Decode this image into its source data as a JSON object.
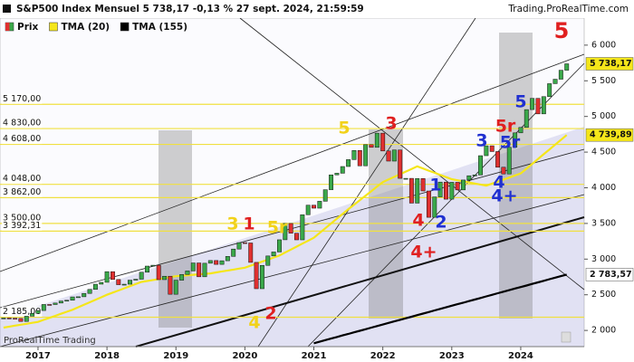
{
  "chart_data": {
    "type": "candlestick",
    "title": "S&P500 Index Mensuel 5 738,17 -0,13 % 27 sept. 2024, 21:59:59",
    "source": "Trading.ProRealTime.com",
    "watermark": "ProRealTime Trading",
    "categories": [
      null,
      null,
      null,
      null,
      null,
      null,
      "2017",
      null,
      null,
      null,
      null,
      null,
      null,
      null,
      null,
      null,
      null,
      null,
      "2018",
      null,
      null,
      null,
      null,
      null,
      null,
      null,
      null,
      null,
      null,
      null,
      "2019",
      null,
      null,
      null,
      null,
      null,
      null,
      null,
      null,
      null,
      null,
      null,
      "2020",
      null,
      null,
      null,
      null,
      null,
      null,
      null,
      null,
      null,
      null,
      null,
      "2021",
      null,
      null,
      null,
      null,
      null,
      null,
      null,
      null,
      null,
      null,
      null,
      "2022",
      null,
      null,
      null,
      null,
      null,
      null,
      null,
      null,
      null,
      null,
      null,
      "2023",
      null,
      null,
      null,
      null,
      null,
      null,
      null,
      null,
      null,
      null,
      null,
      "2024",
      null,
      null,
      null,
      null,
      null,
      null,
      null,
      null
    ],
    "series": [
      {
        "name": "Prix",
        "up_color": "#3aa84a",
        "down_color": "#e03030",
        "last_value_label": "5 738,17",
        "values": [
          2174,
          2171,
          2168,
          2126,
          2199,
          2239,
          2279,
          2364,
          2363,
          2384,
          2412,
          2423,
          2470,
          2472,
          2519,
          2575,
          2648,
          2674,
          2824,
          2714,
          2641,
          2648,
          2705,
          2718,
          2816,
          2902,
          2914,
          2712,
          2760,
          2507,
          2704,
          2784,
          2834,
          2946,
          2752,
          2942,
          2980,
          2926,
          2977,
          3038,
          3141,
          3231,
          3226,
          2954,
          2585,
          2912,
          3044,
          3100,
          3271,
          3500,
          3363,
          3270,
          3622,
          3756,
          3714,
          3811,
          3973,
          4181,
          4204,
          4298,
          4395,
          4523,
          4308,
          4605,
          4567,
          4766,
          4516,
          4374,
          4530,
          4132,
          4132,
          3785,
          4130,
          3955,
          3586,
          3872,
          4080,
          3840,
          4077,
          3970,
          4109,
          4169,
          4180,
          4450,
          4589,
          4508,
          4288,
          4194,
          4568,
          4770,
          4846,
          5096,
          5254,
          5036,
          5278,
          5460,
          5522,
          5648,
          5738.17
        ]
      },
      {
        "name": "TMA (20)",
        "color": "#f5e61a",
        "last_value_label": "4 739,89",
        "values": [
          2040,
          2053,
          2067,
          2080,
          2093,
          2107,
          2120,
          2148,
          2177,
          2205,
          2233,
          2262,
          2290,
          2325,
          2360,
          2395,
          2430,
          2465,
          2500,
          2530,
          2560,
          2590,
          2620,
          2650,
          2680,
          2693,
          2707,
          2720,
          2733,
          2747,
          2760,
          2767,
          2773,
          2780,
          2787,
          2793,
          2800,
          2813,
          2827,
          2840,
          2853,
          2867,
          2880,
          2908,
          2937,
          2965,
          2993,
          3022,
          3050,
          3092,
          3133,
          3175,
          3217,
          3258,
          3300,
          3367,
          3433,
          3500,
          3567,
          3633,
          3700,
          3763,
          3827,
          3890,
          3953,
          4017,
          4080,
          4117,
          4153,
          4190,
          4227,
          4263,
          4300,
          4270,
          4240,
          4210,
          4180,
          4150,
          4120,
          4105,
          4090,
          4075,
          4060,
          4045,
          4030,
          4058,
          4087,
          4115,
          4143,
          4172,
          4200,
          4268,
          4335,
          4403,
          4470,
          4538,
          4605,
          4673,
          4739.89
        ]
      },
      {
        "name": "TMA (155)",
        "color": "#000000",
        "last_value_label": "2 783,57",
        "values": [
          null,
          null,
          null,
          null,
          null,
          null,
          null,
          null,
          null,
          null,
          null,
          null,
          null,
          null,
          null,
          null,
          null,
          null,
          null,
          null,
          null,
          null,
          null,
          null,
          null,
          null,
          null,
          null,
          null,
          null,
          null,
          null,
          null,
          null,
          null,
          null,
          null,
          null,
          null,
          null,
          null,
          null,
          null,
          null,
          null,
          null,
          null,
          null,
          null,
          null,
          null,
          null,
          null,
          null,
          1820,
          1842,
          1864,
          1886,
          1908,
          1930,
          1951,
          1973,
          1995,
          2017,
          2039,
          2061,
          2083,
          2105,
          2127,
          2149,
          2170,
          2192,
          2214,
          2236,
          2258,
          2280,
          2302,
          2324,
          2346,
          2368,
          2389,
          2411,
          2433,
          2455,
          2477,
          2499,
          2521,
          2543,
          2565,
          2587,
          2608,
          2630,
          2652,
          2674,
          2696,
          2718,
          2740,
          2762,
          2783.57
        ]
      }
    ],
    "ylim": [
      1773,
      6379
    ],
    "yticks": [
      {
        "value": 2000,
        "label": "2 000"
      },
      {
        "value": 2500,
        "label": "2 500"
      },
      {
        "value": 3000,
        "label": "3 000"
      },
      {
        "value": 3500,
        "label": "3 500"
      },
      {
        "value": 4000,
        "label": "4 000"
      },
      {
        "value": 4500,
        "label": "4 500"
      },
      {
        "value": 5000,
        "label": "5 000"
      },
      {
        "value": 5500,
        "label": "5 500"
      },
      {
        "value": 6000,
        "label": "6 000"
      }
    ],
    "levels": [
      {
        "value": 5170,
        "label": "5 170,00"
      },
      {
        "value": 4830,
        "label": "4 830,00"
      },
      {
        "value": 4608,
        "label": "4 608,00"
      },
      {
        "value": 4048,
        "label": "4 048,00"
      },
      {
        "value": 3862,
        "label": "3 862,00"
      },
      {
        "value": 3500,
        "label": "3 500,00"
      },
      {
        "value": 3392.31,
        "label": "3 392,31"
      },
      {
        "value": 2185,
        "label": "2 185,00"
      }
    ],
    "level_color": "#f0e040",
    "annotations": [
      {
        "text": "5",
        "color": "#e02020"
      },
      {
        "text": "5",
        "color": "#f2d21a"
      },
      {
        "text": "3",
        "color": "#e02020"
      },
      {
        "text": "3",
        "color": "#f2d21a"
      },
      {
        "text": "1",
        "color": "#e02020"
      },
      {
        "text": "5r",
        "color": "#f2d21a"
      },
      {
        "text": "4",
        "color": "#f2d21a"
      },
      {
        "text": "2",
        "color": "#e02020"
      },
      {
        "text": "4",
        "color": "#e02020"
      },
      {
        "text": "1",
        "color": "#2030d0"
      },
      {
        "text": "2",
        "color": "#2030d0"
      },
      {
        "text": "4+",
        "color": "#e02020"
      },
      {
        "text": "3",
        "color": "#2030d0"
      },
      {
        "text": "4",
        "color": "#2030d0"
      },
      {
        "text": "4+",
        "color": "#2030d0"
      },
      {
        "text": "5r",
        "color": "#e02020"
      },
      {
        "text": "5r",
        "color": "#2030d0"
      },
      {
        "text": "5",
        "color": "#2030d0"
      }
    ]
  }
}
